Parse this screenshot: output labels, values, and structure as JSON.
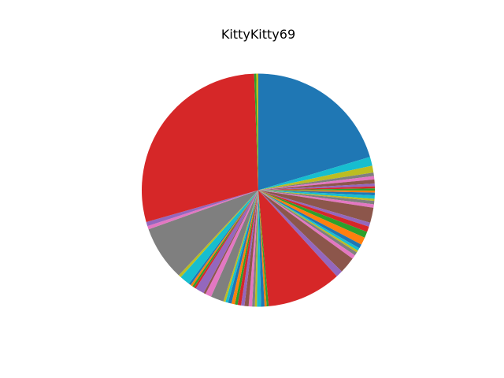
{
  "chart_data": {
    "type": "pie",
    "title": "KittyKitty69",
    "start_angle_deg": 90,
    "direction": "clockwise",
    "legend": "none",
    "unit": "percent",
    "slices": [
      {
        "value": 21.5,
        "color": "#1f77b4"
      },
      {
        "value": 1.3,
        "color": "#17becf"
      },
      {
        "value": 1.0,
        "color": "#bcbd22"
      },
      {
        "value": 0.5,
        "color": "#7f7f7f"
      },
      {
        "value": 0.5,
        "color": "#e377c2"
      },
      {
        "value": 0.6,
        "color": "#8c564b"
      },
      {
        "value": 0.4,
        "color": "#9467bd"
      },
      {
        "value": 0.3,
        "color": "#d62728"
      },
      {
        "value": 0.3,
        "color": "#2ca02c"
      },
      {
        "value": 0.3,
        "color": "#ff7f0e"
      },
      {
        "value": 0.4,
        "color": "#1f77b4"
      },
      {
        "value": 0.5,
        "color": "#17becf"
      },
      {
        "value": 0.3,
        "color": "#bcbd22"
      },
      {
        "value": 0.5,
        "color": "#7f7f7f"
      },
      {
        "value": 0.5,
        "color": "#e377c2"
      },
      {
        "value": 2.2,
        "color": "#8c564b"
      },
      {
        "value": 0.6,
        "color": "#9467bd"
      },
      {
        "value": 0.8,
        "color": "#d62728"
      },
      {
        "value": 0.9,
        "color": "#2ca02c"
      },
      {
        "value": 1.1,
        "color": "#ff7f0e"
      },
      {
        "value": 0.6,
        "color": "#1f77b4"
      },
      {
        "value": 0.4,
        "color": "#17becf"
      },
      {
        "value": 0.3,
        "color": "#bcbd22"
      },
      {
        "value": 0.5,
        "color": "#7f7f7f"
      },
      {
        "value": 0.6,
        "color": "#e377c2"
      },
      {
        "value": 2.4,
        "color": "#8c564b"
      },
      {
        "value": 1.0,
        "color": "#9467bd"
      },
      {
        "value": 10.9,
        "color": "#d62728"
      },
      {
        "value": 0.3,
        "color": "#2ca02c"
      },
      {
        "value": 0.3,
        "color": "#ff7f0e"
      },
      {
        "value": 0.5,
        "color": "#1f77b4"
      },
      {
        "value": 0.6,
        "color": "#17becf"
      },
      {
        "value": 0.3,
        "color": "#bcbd22"
      },
      {
        "value": 0.4,
        "color": "#7f7f7f"
      },
      {
        "value": 0.5,
        "color": "#e377c2"
      },
      {
        "value": 0.6,
        "color": "#8c564b"
      },
      {
        "value": 0.5,
        "color": "#9467bd"
      },
      {
        "value": 0.5,
        "color": "#d62728"
      },
      {
        "value": 0.4,
        "color": "#2ca02c"
      },
      {
        "value": 0.5,
        "color": "#ff7f0e"
      },
      {
        "value": 0.5,
        "color": "#1f77b4"
      },
      {
        "value": 0.4,
        "color": "#17becf"
      },
      {
        "value": 0.3,
        "color": "#bcbd22"
      },
      {
        "value": 1.9,
        "color": "#7f7f7f"
      },
      {
        "value": 0.9,
        "color": "#e377c2"
      },
      {
        "value": 0.3,
        "color": "#8c564b"
      },
      {
        "value": 1.3,
        "color": "#9467bd"
      },
      {
        "value": 0.3,
        "color": "#d62728"
      },
      {
        "value": 0.3,
        "color": "#2ca02c"
      },
      {
        "value": 0.3,
        "color": "#ff7f0e"
      },
      {
        "value": 0.3,
        "color": "#1f77b4"
      },
      {
        "value": 1.5,
        "color": "#17becf"
      },
      {
        "value": 0.4,
        "color": "#bcbd22"
      },
      {
        "value": 8.0,
        "color": "#7f7f7f"
      },
      {
        "value": 0.5,
        "color": "#e377c2"
      },
      {
        "value": 0.6,
        "color": "#9467bd"
      },
      {
        "value": 30.4,
        "color": "#d62728"
      },
      {
        "value": 0.3,
        "color": "#2ca02c"
      },
      {
        "value": 0.3,
        "color": "#bcbd22"
      }
    ]
  }
}
